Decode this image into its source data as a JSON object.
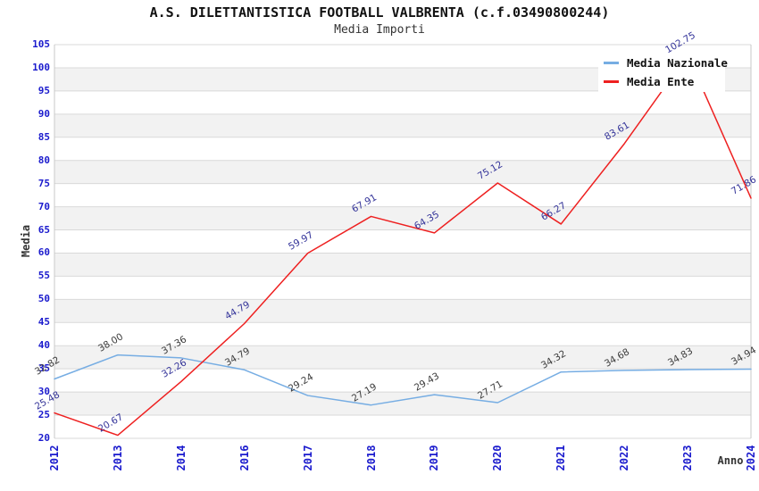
{
  "chart_data": {
    "type": "line",
    "title": "A.S. DILETTANTISTICA FOOTBALL VALBRENTA (c.f.03490800244)",
    "subtitle": "Media Importi",
    "xlabel": "Anno",
    "ylabel": "Media",
    "categories": [
      "2012",
      "2013",
      "2014",
      "2016",
      "2017",
      "2018",
      "2019",
      "2020",
      "2021",
      "2022",
      "2023",
      "2024"
    ],
    "ylim": [
      20,
      105
    ],
    "ytick_step": 5,
    "grid": "horizontal-gridlines-with-alternating-bands",
    "legend_position": "top-right",
    "colors": {
      "tick_label": "#1a1acd",
      "gridline": "#d9d9d9",
      "band_fill": "#f2f2f2",
      "plot_border": "#c9c9c9",
      "background": "#ffffff"
    },
    "series": [
      {
        "name": "Media Nazionale",
        "color": "#76ade3",
        "label_color": "#3a3a3a",
        "values": [
          32.82,
          38.0,
          37.36,
          34.79,
          29.24,
          27.19,
          29.43,
          27.71,
          34.32,
          34.68,
          34.83,
          34.94
        ]
      },
      {
        "name": "Media Ente",
        "color": "#ee2020",
        "label_color": "#333399",
        "values": [
          25.48,
          20.67,
          32.26,
          44.79,
          59.97,
          67.91,
          64.35,
          75.12,
          66.27,
          83.61,
          102.75,
          71.86
        ]
      }
    ]
  }
}
